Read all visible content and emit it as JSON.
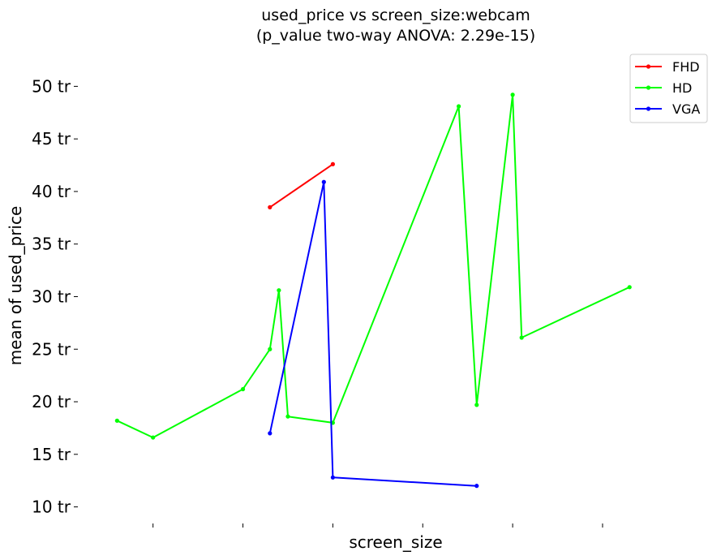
{
  "chart_data": {
    "type": "line",
    "title": "used_price vs screen_size:webcam",
    "subtitle": "(p_value two-way ANOVA: 2.29e-15)",
    "xlabel": "screen_size",
    "ylabel": "mean of used_price",
    "ylim": [
      8.5,
      52.5
    ],
    "yticks": [
      10,
      15,
      20,
      25,
      30,
      35,
      40,
      45,
      50
    ],
    "ytick_labels": [
      "10 tr",
      "15 tr",
      "20 tr",
      "25 tr",
      "30 tr",
      "35 tr",
      "40 tr",
      "45 tr",
      "50 tr"
    ],
    "xlim": [
      0.22,
      0.92
    ],
    "xticks": [
      0.3,
      0.4,
      0.5,
      0.6,
      0.7,
      0.8
    ],
    "xtick_labels": [
      "",
      "",
      "",
      "",
      "",
      ""
    ],
    "grid": false,
    "legend_position": "top-right",
    "series": [
      {
        "name": "FHD",
        "color": "#ff0000",
        "x": [
          0.43,
          0.5
        ],
        "y": [
          38.5,
          42.6
        ]
      },
      {
        "name": "HD",
        "color": "#00ff00",
        "x": [
          0.26,
          0.3,
          0.4,
          0.43,
          0.44,
          0.45,
          0.5,
          0.64,
          0.66,
          0.7,
          0.71,
          0.83
        ],
        "y": [
          18.2,
          16.6,
          21.2,
          25.0,
          30.6,
          18.6,
          18.0,
          48.1,
          19.7,
          49.2,
          26.1,
          30.9
        ]
      },
      {
        "name": "VGA",
        "color": "#0000ff",
        "x": [
          0.43,
          0.49,
          0.5,
          0.66
        ],
        "y": [
          17.0,
          40.9,
          12.8,
          12.0
        ]
      }
    ]
  }
}
